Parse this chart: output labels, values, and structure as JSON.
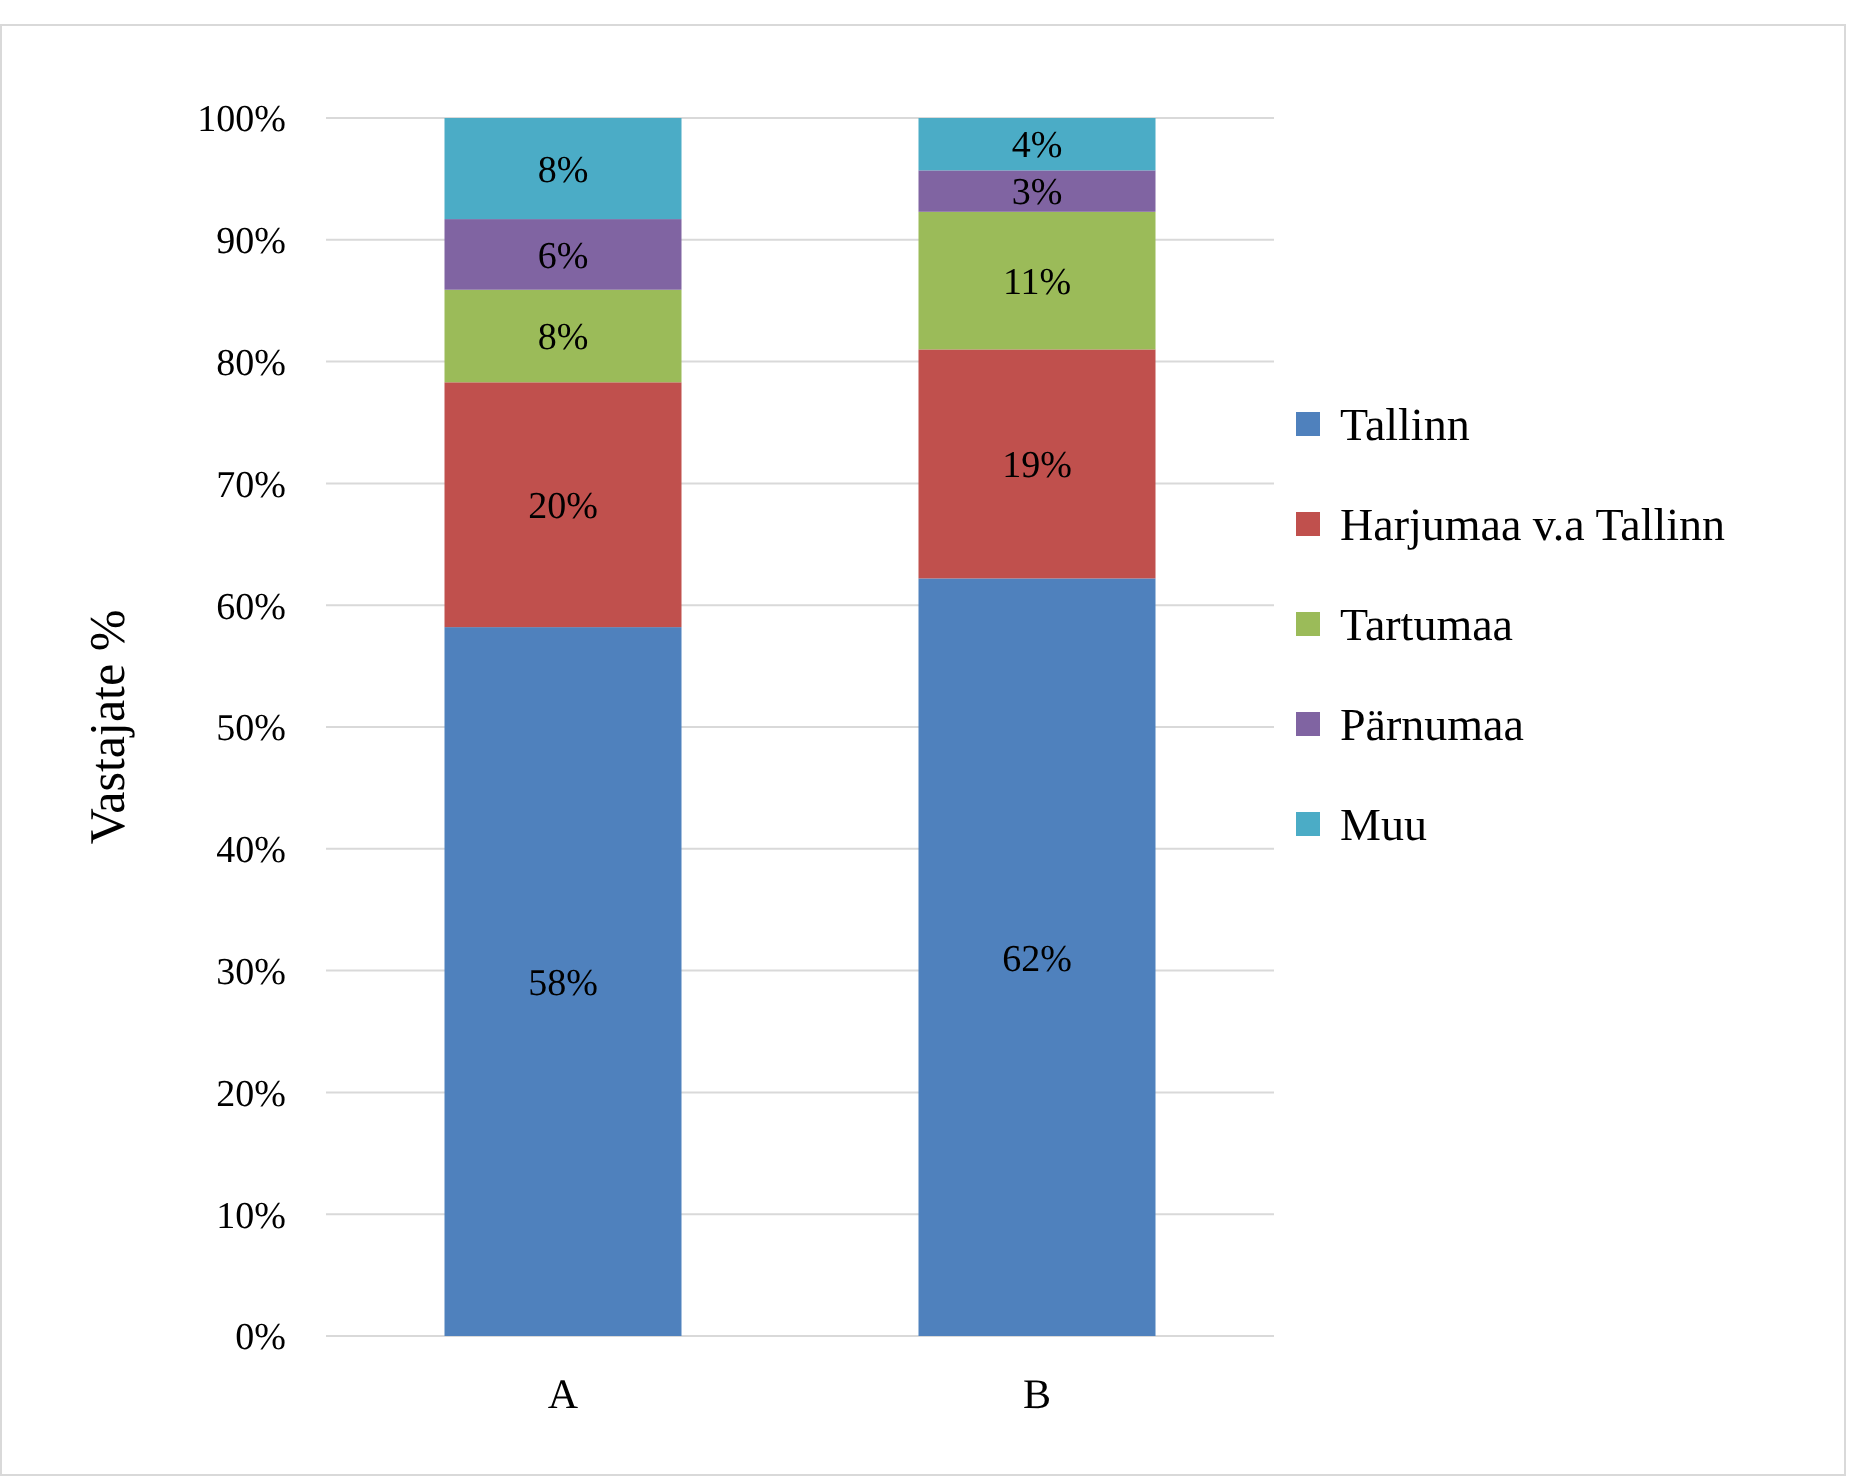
{
  "chart_data": {
    "type": "bar",
    "stacked": true,
    "categories": [
      "A",
      "B"
    ],
    "series": [
      {
        "name": "Tallinn",
        "color": "#4f81bd",
        "values": [
          58.2,
          62.2
        ],
        "value_labels": [
          "58%",
          "62%"
        ]
      },
      {
        "name": "Harjumaa v.a Tallinn",
        "color": "#c0504d",
        "values": [
          20.1,
          18.8
        ],
        "value_labels": [
          "20%",
          "19%"
        ]
      },
      {
        "name": "Tartumaa",
        "color": "#9bbb59",
        "values": [
          7.6,
          11.3
        ],
        "value_labels": [
          "8%",
          "11%"
        ]
      },
      {
        "name": "Pärnumaa",
        "color": "#8064a2",
        "values": [
          5.8,
          3.4
        ],
        "value_labels": [
          "6%",
          "3%"
        ]
      },
      {
        "name": "Muu",
        "color": "#4bacc6",
        "values": [
          8.3,
          4.3
        ],
        "value_labels": [
          "8%",
          "4%"
        ]
      }
    ],
    "ylabel": "Vastajate %",
    "ylim": [
      0,
      100
    ],
    "yticks": [
      {
        "value": 0,
        "label": "0%"
      },
      {
        "value": 10,
        "label": "10%"
      },
      {
        "value": 20,
        "label": "20%"
      },
      {
        "value": 30,
        "label": "30%"
      },
      {
        "value": 40,
        "label": "40%"
      },
      {
        "value": 50,
        "label": "50%"
      },
      {
        "value": 60,
        "label": "60%"
      },
      {
        "value": 70,
        "label": "70%"
      },
      {
        "value": 80,
        "label": "80%"
      },
      {
        "value": 90,
        "label": "90%"
      },
      {
        "value": 100,
        "label": "100%"
      }
    ],
    "grid": "y",
    "legend": "right",
    "marker": "square"
  }
}
